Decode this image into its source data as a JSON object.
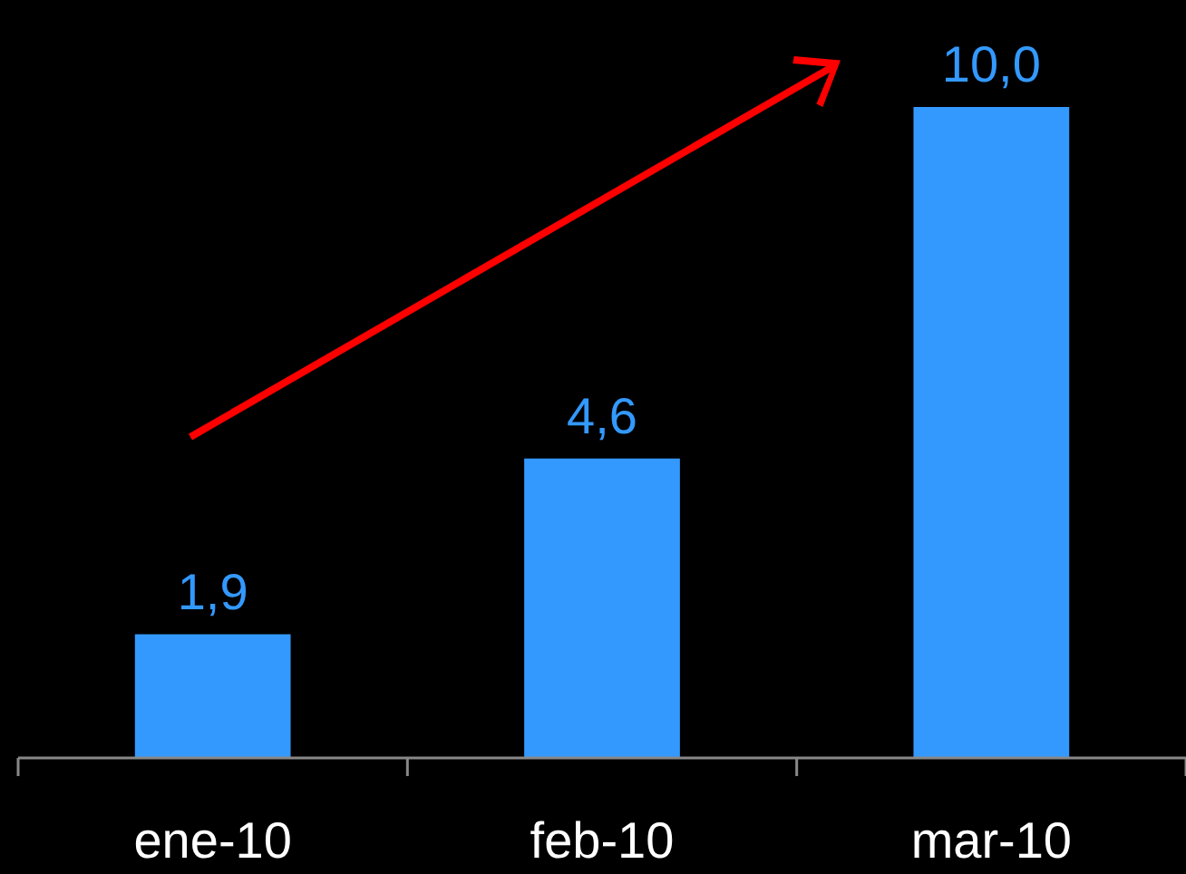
{
  "chart_data": {
    "type": "bar",
    "categories": [
      "ene-10",
      "feb-10",
      "mar-10"
    ],
    "values": [
      1.9,
      4.6,
      10.0
    ],
    "value_labels": [
      "1,9",
      "4,6",
      "10,0"
    ],
    "color": "#3399ff"
  }
}
